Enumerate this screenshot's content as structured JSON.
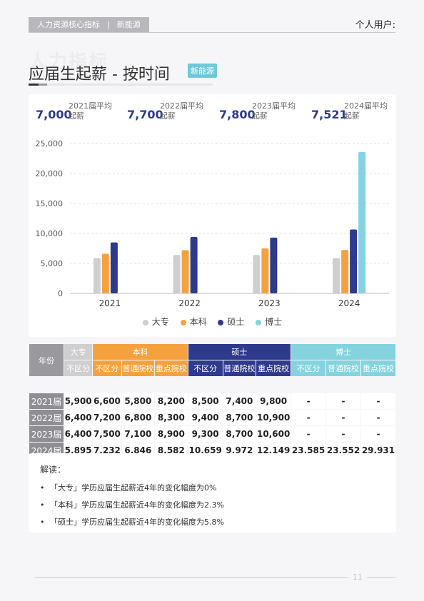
{
  "header": {
    "tag_left": "人力资源核心指标",
    "tag_sep": "|",
    "tag_right": "新能源",
    "user_label": "个人用户:"
  },
  "watermark": "人力指标",
  "page_title": "应届生起薪 - 按时间",
  "badge": "新能源",
  "kpis": [
    {
      "value": "7,000",
      "label": "2021届平均起薪"
    },
    {
      "value": "7,700",
      "label": "2022届平均起薪"
    },
    {
      "value": "7,800",
      "label": "2023届平均起薪"
    },
    {
      "value": "7,521",
      "label": "2024届平均起薪"
    }
  ],
  "chart_data": {
    "type": "bar",
    "categories": [
      "2021",
      "2022",
      "2023",
      "2024"
    ],
    "series": [
      {
        "name": "大专",
        "color": "#cfcfd2",
        "values": [
          5900,
          6400,
          6400,
          5895
        ]
      },
      {
        "name": "本科",
        "color": "#f5a23e",
        "values": [
          6600,
          7200,
          7500,
          7232
        ]
      },
      {
        "name": "硕士",
        "color": "#2e3a8c",
        "values": [
          8500,
          9400,
          9300,
          10659
        ]
      },
      {
        "name": "博士",
        "color": "#84d3de",
        "values": [
          null,
          null,
          null,
          23585
        ]
      }
    ],
    "ylim": [
      0,
      25000
    ],
    "yticks": [
      "0",
      "5,000",
      "10,000",
      "15,000",
      "20,000",
      "25,000"
    ],
    "grid": true,
    "legend": "bottom"
  },
  "table": {
    "year_header": "年份",
    "groups": [
      {
        "name": "大专",
        "cols": [
          "不区分"
        ]
      },
      {
        "name": "本科",
        "cols": [
          "不区分",
          "普通院校",
          "重点院校"
        ]
      },
      {
        "name": "硕士",
        "cols": [
          "不区分",
          "普通院校",
          "重点院校"
        ]
      },
      {
        "name": "博士",
        "cols": [
          "不区分",
          "普通院校",
          "重点院校"
        ]
      }
    ],
    "rows": [
      {
        "year": "2021届",
        "cells": [
          "5,900",
          "6,600",
          "5,800",
          "8,200",
          "8,500",
          "7,400",
          "9,800",
          "-",
          "-",
          "-"
        ]
      },
      {
        "year": "2022届",
        "cells": [
          "6,400",
          "7,200",
          "6,800",
          "8,300",
          "9,400",
          "8,700",
          "10,900",
          "-",
          "-",
          "-"
        ]
      },
      {
        "year": "2023届",
        "cells": [
          "6,400",
          "7,500",
          "7,100",
          "8,900",
          "9,300",
          "8,700",
          "10,600",
          "-",
          "-",
          "-"
        ]
      },
      {
        "year": "2024届",
        "cells": [
          "5,895",
          "7,232",
          "6,846",
          "8,582",
          "10,659",
          "9,972",
          "12,149",
          "23,585",
          "23,552",
          "29,931"
        ]
      }
    ]
  },
  "interpretation": {
    "heading": "解读：",
    "bullet": "•",
    "items": [
      "「大专」学历应届生起薪近4年的变化幅度为0%",
      "「本科」学历应届生起薪近4年的变化幅度为2.3%",
      "「硕士」学历应届生起薪近4年的变化幅度为5.8%"
    ]
  },
  "page_number": "11"
}
